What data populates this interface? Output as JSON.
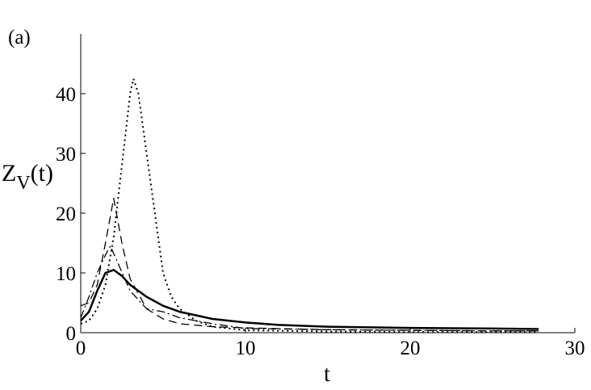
{
  "chart_data": {
    "type": "line",
    "panel_label": "(a)",
    "ylabel": [
      "Z",
      "V",
      "(t)"
    ],
    "xlabel": "t",
    "xlim": [
      0,
      30
    ],
    "ylim": [
      0,
      50
    ],
    "xticks": [
      0,
      10,
      20,
      30
    ],
    "yticks": [
      0,
      10,
      20,
      30,
      40
    ],
    "series": [
      {
        "color": "#000000",
        "dash": "solid",
        "width": 2.5,
        "x": [
          0,
          0.5,
          1,
          1.5,
          2,
          2.5,
          3,
          4,
          5,
          6,
          8,
          10,
          12,
          15,
          20,
          25,
          27.8
        ],
        "values": [
          2,
          3.5,
          7,
          10,
          10.5,
          9.5,
          8,
          6,
          4.5,
          3.5,
          2.3,
          1.7,
          1.3,
          1.0,
          0.8,
          0.7,
          0.6
        ]
      },
      {
        "color": "#000000",
        "dash": "10,6",
        "width": 1.3,
        "x": [
          0,
          0.5,
          1,
          1.5,
          2,
          2.5,
          3,
          4,
          5,
          6,
          8,
          10,
          15,
          20,
          25,
          27.8
        ],
        "values": [
          4.5,
          5,
          8,
          15,
          22.5,
          15,
          9,
          4,
          2.3,
          1.5,
          1.0,
          0.8,
          0.5,
          0.4,
          0.3,
          0.3
        ]
      },
      {
        "color": "#000000",
        "dash": "10,4,2,4",
        "width": 1.3,
        "x": [
          0,
          0.5,
          1,
          1.5,
          1.8,
          2.2,
          3,
          4,
          5,
          6,
          8,
          10,
          15,
          20,
          25,
          27.8
        ],
        "values": [
          2.5,
          6,
          10,
          13,
          14.5,
          12,
          7,
          4,
          3.5,
          2.5,
          1.5,
          0.7,
          0.5,
          0.4,
          0.3,
          0.3
        ]
      },
      {
        "color": "#000000",
        "dash": "2,4",
        "width": 2,
        "x": [
          0,
          0.5,
          1,
          1.5,
          2,
          2.5,
          3,
          3.2,
          3.5,
          4,
          4.5,
          5,
          5.5,
          6,
          7,
          8,
          10,
          15,
          20,
          25,
          27.8
        ],
        "values": [
          1.5,
          2,
          4,
          8,
          16,
          28,
          40,
          42.5,
          40,
          30,
          20,
          10,
          6,
          4,
          2,
          1,
          0.4,
          0.2,
          0.1,
          0.1,
          0.1
        ]
      }
    ]
  }
}
